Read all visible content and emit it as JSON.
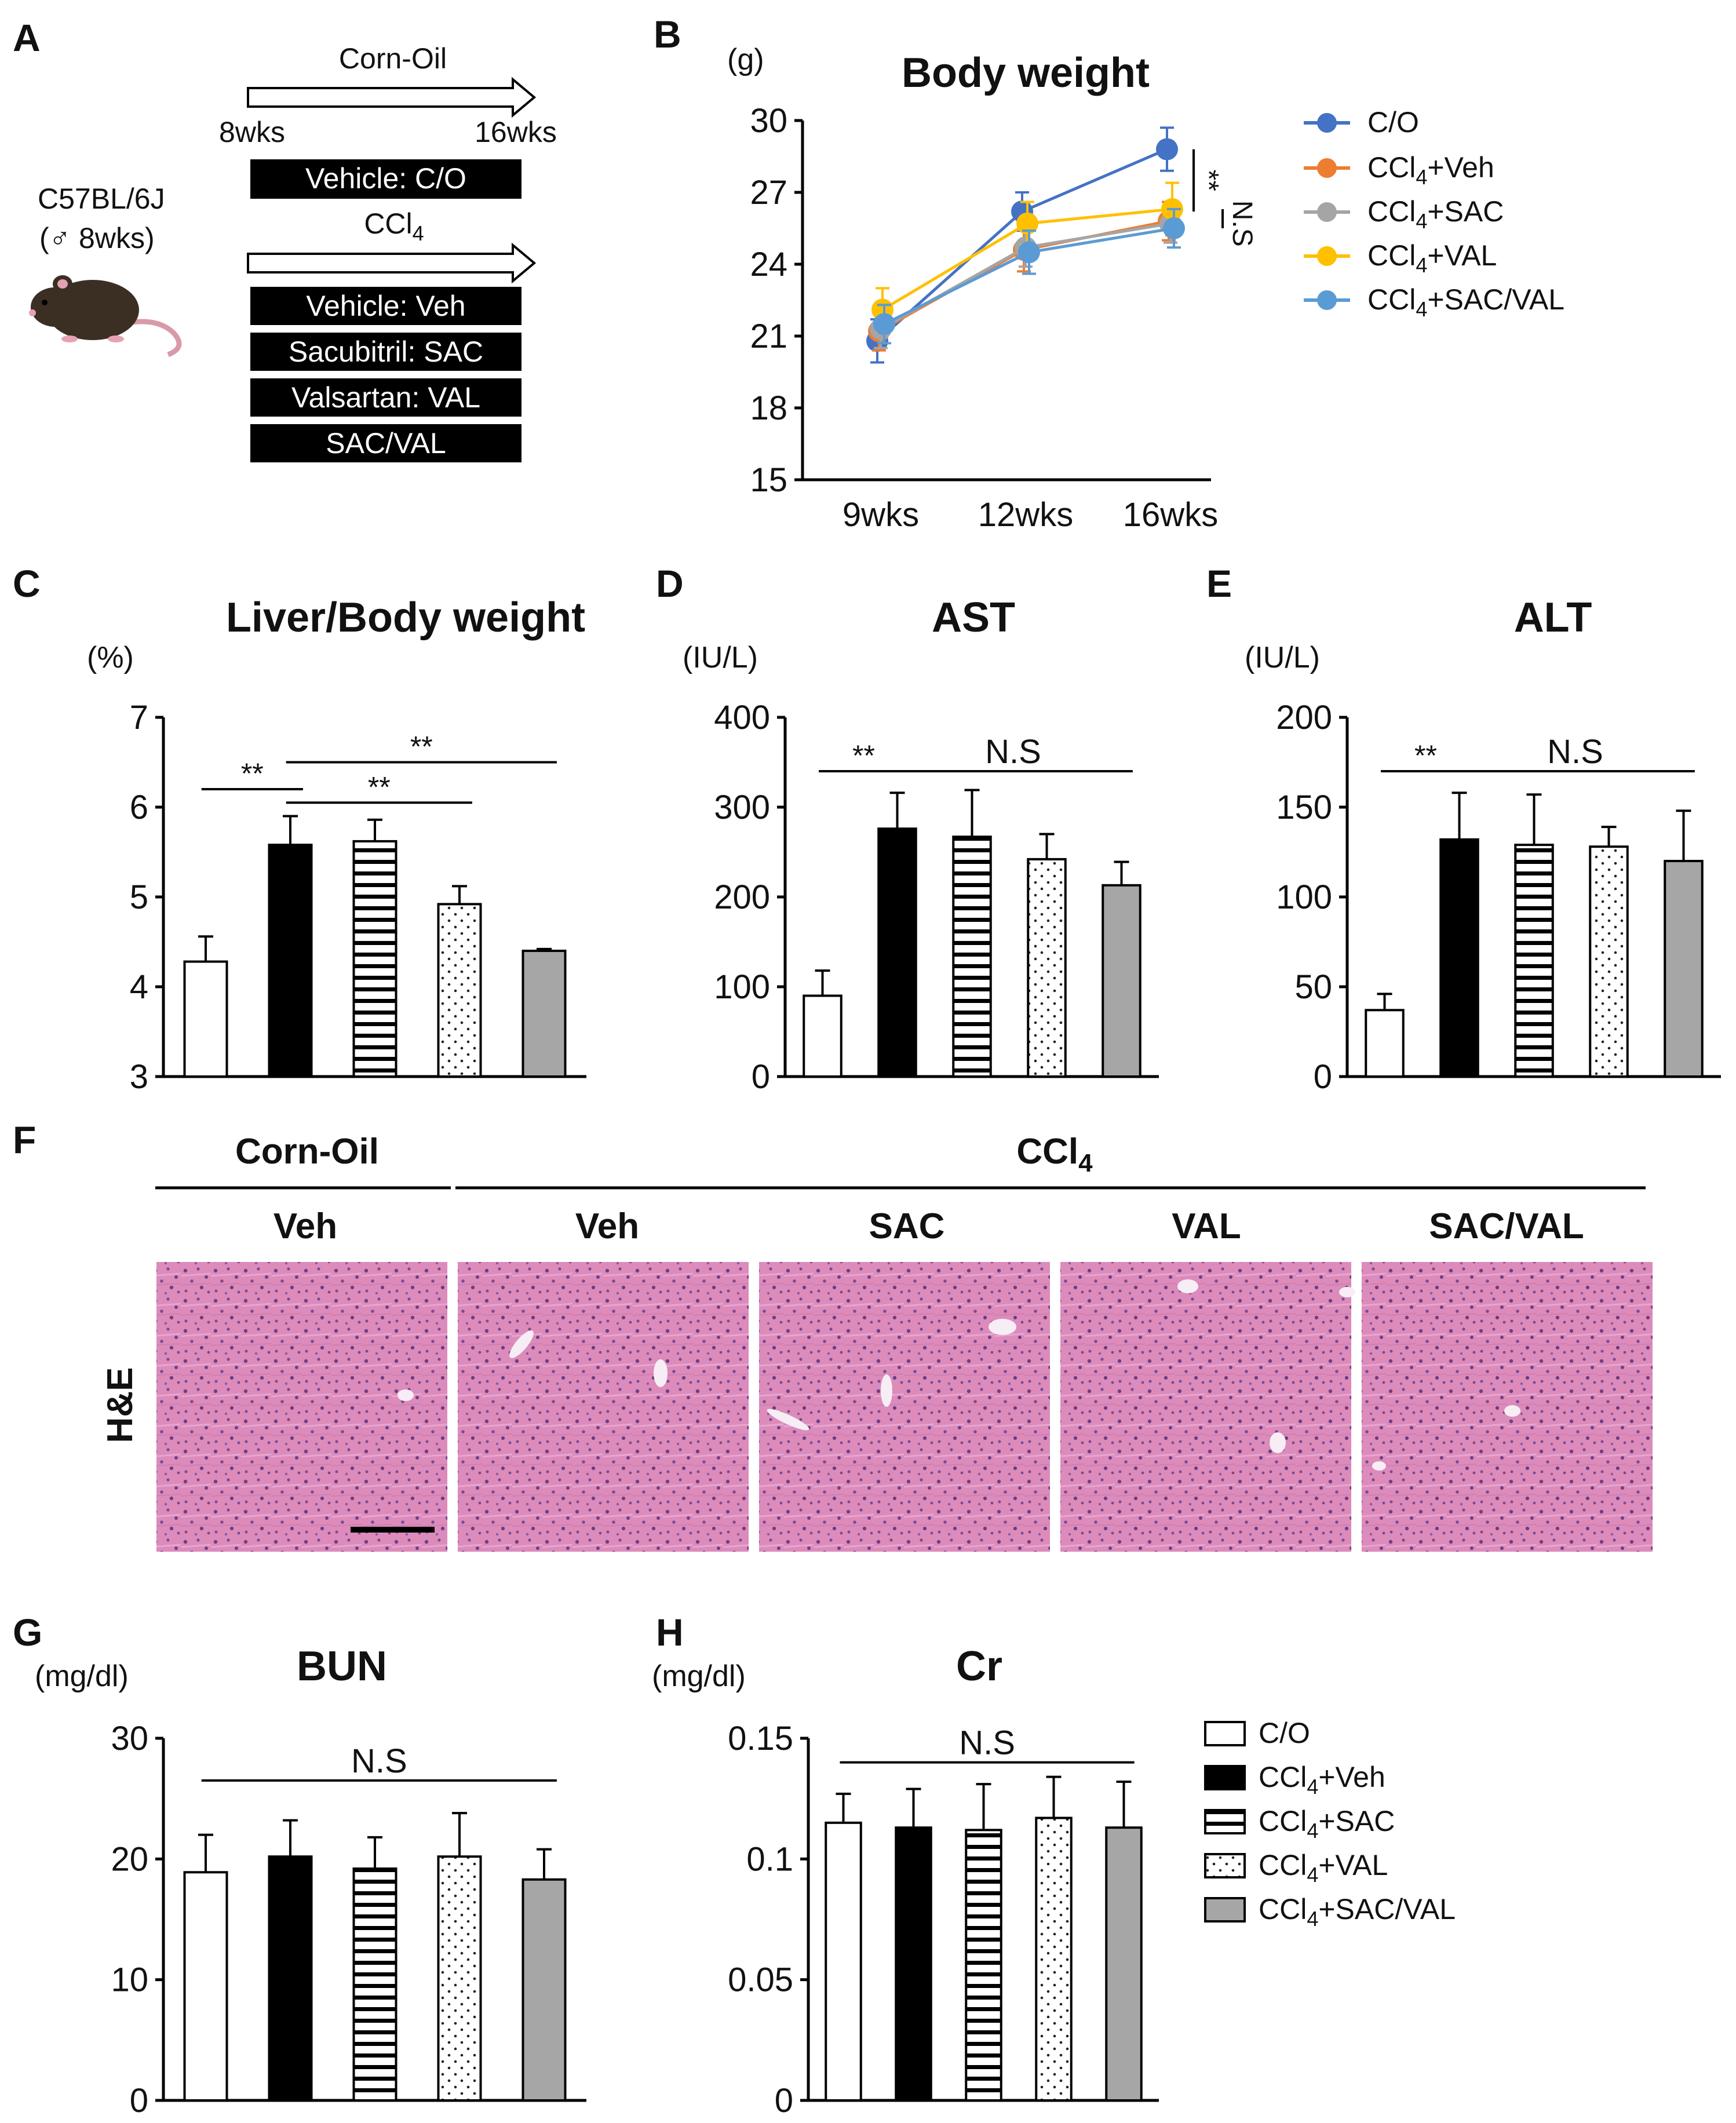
{
  "figure": {
    "panel_letters": [
      "A",
      "B",
      "C",
      "D",
      "E",
      "F",
      "G",
      "H"
    ],
    "colors": {
      "co": "#4472c4",
      "veh": "#ed7d31",
      "sac": "#a5a5a5",
      "val": "#ffc000",
      "sacval": "#5b9bd5",
      "bar_black": "#000000",
      "bar_gray": "#a6a6a6",
      "bar_white": "#ffffff"
    }
  },
  "panel_a": {
    "strain": "C57BL/6J",
    "age": "(♂ 8wks)",
    "corn_oil_label": "Corn-Oil",
    "start_label": "8wks",
    "end_label": "16wks",
    "ccl4_main": "CCl",
    "ccl4_sub": "4",
    "vehicle_co": "Vehicle: C/O",
    "treatments": [
      "Vehicle: Veh",
      "Sacubitril: SAC",
      "Valsartan: VAL",
      "SAC/VAL"
    ]
  },
  "chart_data": [
    {
      "id": "B",
      "type": "line",
      "title": "Body weight",
      "ylabel": "(g)",
      "categories": [
        "9wks",
        "12wks",
        "16wks"
      ],
      "ylim": [
        15,
        30
      ],
      "yticks": [
        15,
        18,
        21,
        24,
        27,
        30
      ],
      "series": [
        {
          "name": "C/O",
          "color_key": "co",
          "values": [
            20.8,
            26.2,
            28.8
          ],
          "err": [
            0.9,
            0.8,
            0.9
          ]
        },
        {
          "name": "CCl4+Veh",
          "color_key": "veh",
          "values": [
            21.2,
            24.6,
            25.8
          ],
          "err": [
            0.8,
            0.9,
            0.8
          ]
        },
        {
          "name": "CCl4+SAC",
          "color_key": "sac",
          "values": [
            21.3,
            24.7,
            25.7
          ],
          "err": [
            0.8,
            0.8,
            0.8
          ]
        },
        {
          "name": "CCl4+VAL",
          "color_key": "val",
          "values": [
            22.1,
            25.7,
            26.3
          ],
          "err": [
            0.9,
            0.9,
            1.1
          ]
        },
        {
          "name": "CCl4+SAC/VAL",
          "color_key": "sacval",
          "values": [
            21.5,
            24.5,
            25.5
          ],
          "err": [
            0.8,
            0.9,
            0.8
          ]
        }
      ],
      "legend": [
        {
          "main": "C/O",
          "sub": "",
          "rest": ""
        },
        {
          "main": "CCl",
          "sub": "4",
          "rest": "+Veh"
        },
        {
          "main": "CCl",
          "sub": "4",
          "rest": "+SAC"
        },
        {
          "main": "CCl",
          "sub": "4",
          "rest": "+VAL"
        },
        {
          "main": "CCl",
          "sub": "4",
          "rest": "+SAC/VAL"
        }
      ],
      "annotations": [
        "**",
        "N.S"
      ]
    },
    {
      "id": "C",
      "type": "bar",
      "title": "Liver/Body weight",
      "ylabel": "(%)",
      "ylim": [
        3,
        7
      ],
      "yticks": [
        3,
        4,
        5,
        6,
        7
      ],
      "groups": [
        "C/O",
        "CCl4+Veh",
        "CCl4+SAC",
        "CCl4+VAL",
        "CCl4+SAC/VAL"
      ],
      "values": [
        4.28,
        5.58,
        5.62,
        4.92,
        4.4
      ],
      "err": [
        0.28,
        0.32,
        0.24,
        0.2,
        0.02
      ],
      "annotations": [
        {
          "text": "**",
          "from": 0,
          "to": 1,
          "y": 6.2
        },
        {
          "text": "**",
          "from": 1,
          "to": 3,
          "y": 6.05
        },
        {
          "text": "**",
          "from": 1,
          "to": 4,
          "y": 6.5
        }
      ]
    },
    {
      "id": "D",
      "type": "bar",
      "title": "AST",
      "ylabel": "(IU/L)",
      "ylim": [
        0,
        400
      ],
      "yticks": [
        0,
        100,
        200,
        300,
        400
      ],
      "groups": [
        "C/O",
        "CCl4+Veh",
        "CCl4+SAC",
        "CCl4+VAL",
        "CCl4+SAC/VAL"
      ],
      "values": [
        90,
        276,
        267,
        242,
        213
      ],
      "err": [
        28,
        40,
        52,
        28,
        26
      ],
      "annotations": [
        {
          "text": "**",
          "from": 0,
          "to": 1,
          "y": 340
        },
        {
          "text": "N.S",
          "from": 1,
          "to": 4,
          "y": 340
        }
      ]
    },
    {
      "id": "E",
      "type": "bar",
      "title": "ALT",
      "ylabel": "(IU/L)",
      "ylim": [
        0,
        200
      ],
      "yticks": [
        0,
        50,
        100,
        150,
        200
      ],
      "groups": [
        "C/O",
        "CCl4+Veh",
        "CCl4+SAC",
        "CCl4+VAL",
        "CCl4+SAC/VAL"
      ],
      "values": [
        37,
        132,
        129,
        128,
        120
      ],
      "err": [
        9,
        26,
        28,
        11,
        28
      ],
      "annotations": [
        {
          "text": "**",
          "from": 0,
          "to": 1,
          "y": 170
        },
        {
          "text": "N.S",
          "from": 1,
          "to": 4,
          "y": 170
        }
      ]
    },
    {
      "id": "G",
      "type": "bar",
      "title": "BUN",
      "ylabel": "(mg/dl)",
      "ylim": [
        0,
        30
      ],
      "yticks": [
        0,
        10,
        20,
        30
      ],
      "groups": [
        "C/O",
        "CCl4+Veh",
        "CCl4+SAC",
        "CCl4+VAL",
        "CCl4+SAC/VAL"
      ],
      "values": [
        18.9,
        20.2,
        19.2,
        20.2,
        18.3
      ],
      "err": [
        3.1,
        3.0,
        2.6,
        3.6,
        2.5
      ],
      "annotations": [
        {
          "text": "N.S",
          "from": 0,
          "to": 4,
          "y": 26.5
        }
      ]
    },
    {
      "id": "H",
      "type": "bar",
      "title": "Cr",
      "ylabel": "(mg/dl)",
      "ylim": [
        0,
        0.15
      ],
      "yticks": [
        0,
        0.05,
        0.1,
        0.15
      ],
      "ytick_labels": [
        "0",
        "0.05",
        "0.1",
        "0.15"
      ],
      "groups": [
        "C/O",
        "CCl4+Veh",
        "CCl4+SAC",
        "CCl4+VAL",
        "CCl4+SAC/VAL"
      ],
      "values": [
        0.115,
        0.113,
        0.112,
        0.117,
        0.113
      ],
      "err": [
        0.012,
        0.016,
        0.019,
        0.017,
        0.019
      ],
      "annotations": [
        {
          "text": "N.S",
          "from": 0,
          "to": 4,
          "y": 0.14
        }
      ]
    }
  ],
  "bar_legend": [
    {
      "main": "C/O",
      "sub": "",
      "rest": ""
    },
    {
      "main": "CCl",
      "sub": "4",
      "rest": "+Veh"
    },
    {
      "main": "CCl",
      "sub": "4",
      "rest": "+SAC"
    },
    {
      "main": "CCl",
      "sub": "4",
      "rest": "+VAL"
    },
    {
      "main": "CCl",
      "sub": "4",
      "rest": "+SAC/VAL"
    }
  ],
  "panel_f": {
    "corn_oil": "Corn-Oil",
    "ccl4_main": "CCl",
    "ccl4_sub": "4",
    "columns": [
      "Veh",
      "Veh",
      "SAC",
      "VAL",
      "SAC/VAL"
    ],
    "row_label": "H&E"
  }
}
